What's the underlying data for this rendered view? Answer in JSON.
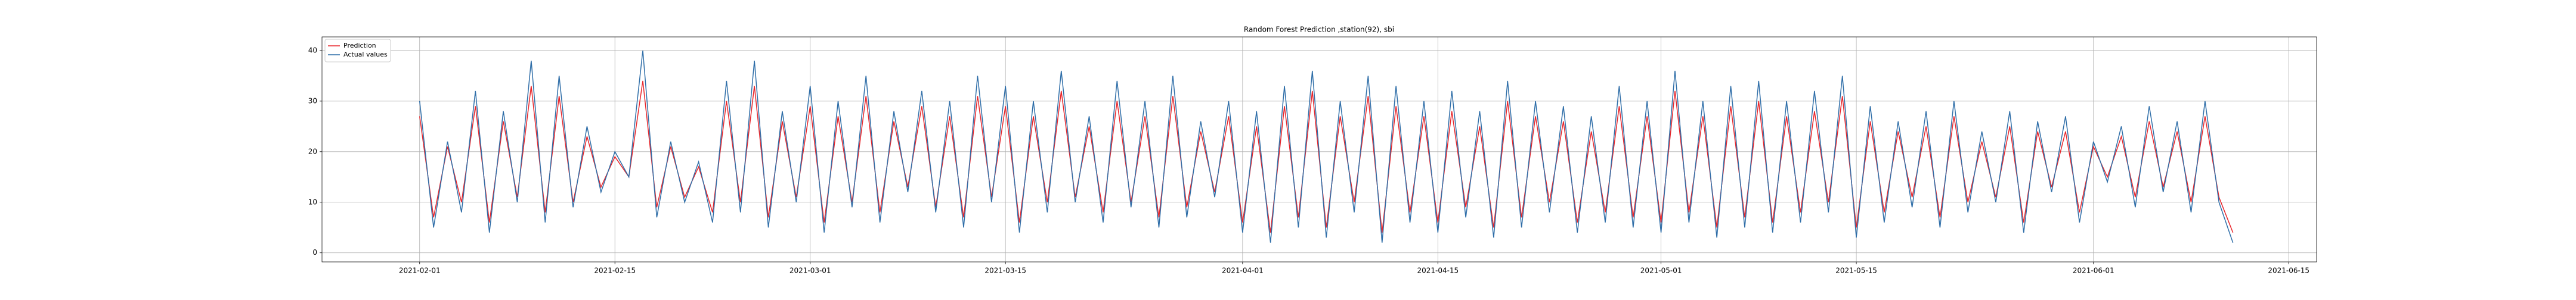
{
  "chart_data": {
    "type": "line",
    "title": "Random Forest Prediction ,station(92), sbi",
    "x": [
      "2021-02-01",
      "2021-02-02",
      "2021-02-03",
      "2021-02-04",
      "2021-02-05",
      "2021-02-06",
      "2021-02-07",
      "2021-02-08",
      "2021-02-09",
      "2021-02-10",
      "2021-02-11",
      "2021-02-12",
      "2021-02-13",
      "2021-02-14",
      "2021-02-15",
      "2021-02-16",
      "2021-02-17",
      "2021-02-18",
      "2021-02-19",
      "2021-02-20",
      "2021-02-21",
      "2021-02-22",
      "2021-02-23",
      "2021-02-24",
      "2021-02-25",
      "2021-02-26",
      "2021-02-27",
      "2021-02-28",
      "2021-03-01",
      "2021-03-02",
      "2021-03-03",
      "2021-03-04",
      "2021-03-05",
      "2021-03-06",
      "2021-03-07",
      "2021-03-08",
      "2021-03-09",
      "2021-03-10",
      "2021-03-11",
      "2021-03-12",
      "2021-03-13",
      "2021-03-14",
      "2021-03-15",
      "2021-03-16",
      "2021-03-17",
      "2021-03-18",
      "2021-03-19",
      "2021-03-20",
      "2021-03-21",
      "2021-03-22",
      "2021-03-23",
      "2021-03-24",
      "2021-03-25",
      "2021-03-26",
      "2021-03-27",
      "2021-03-28",
      "2021-03-29",
      "2021-03-30",
      "2021-03-31",
      "2021-04-01",
      "2021-04-02",
      "2021-04-03",
      "2021-04-04",
      "2021-04-05",
      "2021-04-06",
      "2021-04-07",
      "2021-04-08",
      "2021-04-09",
      "2021-04-10",
      "2021-04-11",
      "2021-04-12",
      "2021-04-13",
      "2021-04-14",
      "2021-04-15",
      "2021-04-16",
      "2021-04-17",
      "2021-04-18",
      "2021-04-19",
      "2021-04-20",
      "2021-04-21",
      "2021-04-22",
      "2021-04-23",
      "2021-04-24",
      "2021-04-25",
      "2021-04-26",
      "2021-04-27",
      "2021-04-28",
      "2021-04-29",
      "2021-04-30",
      "2021-05-01",
      "2021-05-02",
      "2021-05-03",
      "2021-05-04",
      "2021-05-05",
      "2021-05-06",
      "2021-05-07",
      "2021-05-08",
      "2021-05-09",
      "2021-05-10",
      "2021-05-11",
      "2021-05-12",
      "2021-05-13",
      "2021-05-14",
      "2021-05-15",
      "2021-05-16",
      "2021-05-17",
      "2021-05-18",
      "2021-05-19",
      "2021-05-20",
      "2021-05-21",
      "2021-05-22",
      "2021-05-23",
      "2021-05-24",
      "2021-05-25",
      "2021-05-26",
      "2021-05-27",
      "2021-05-28",
      "2021-05-29",
      "2021-05-30",
      "2021-05-31",
      "2021-06-01",
      "2021-06-02",
      "2021-06-03",
      "2021-06-04",
      "2021-06-05",
      "2021-06-06",
      "2021-06-07",
      "2021-06-08",
      "2021-06-09",
      "2021-06-10",
      "2021-06-11"
    ],
    "series": [
      {
        "name": "Prediction",
        "color": "#e8262b",
        "values": [
          27,
          7,
          21,
          10,
          29,
          6,
          26,
          11,
          33,
          8,
          31,
          10,
          23,
          13,
          19,
          15,
          34,
          9,
          21,
          11,
          17,
          8,
          30,
          10,
          33,
          7,
          26,
          11,
          29,
          6,
          27,
          10,
          31,
          8,
          26,
          13,
          29,
          9,
          27,
          7,
          31,
          11,
          29,
          6,
          27,
          10,
          32,
          11,
          25,
          8,
          30,
          10,
          27,
          7,
          31,
          9,
          24,
          12,
          27,
          6,
          25,
          4,
          29,
          7,
          32,
          5,
          27,
          10,
          31,
          4,
          29,
          8,
          27,
          6,
          28,
          9,
          25,
          5,
          30,
          7,
          27,
          10,
          26,
          6,
          24,
          8,
          29,
          7,
          27,
          6,
          32,
          8,
          27,
          5,
          29,
          7,
          30,
          6,
          27,
          8,
          28,
          10,
          31,
          5,
          26,
          8,
          24,
          11,
          25,
          7,
          27,
          10,
          22,
          11,
          25,
          6,
          24,
          13,
          24,
          8,
          21,
          15,
          23,
          11,
          26,
          13,
          24,
          10,
          27,
          11,
          4
        ]
      },
      {
        "name": "Actual values",
        "color": "#2f6ea8",
        "values": [
          30,
          5,
          22,
          8,
          32,
          4,
          28,
          10,
          38,
          6,
          35,
          9,
          25,
          12,
          20,
          15,
          40,
          7,
          22,
          10,
          18,
          6,
          34,
          8,
          38,
          5,
          28,
          10,
          33,
          4,
          30,
          9,
          35,
          6,
          28,
          12,
          32,
          8,
          30,
          5,
          35,
          10,
          33,
          4,
          30,
          8,
          36,
          10,
          27,
          6,
          34,
          9,
          30,
          5,
          35,
          7,
          26,
          11,
          30,
          4,
          28,
          2,
          33,
          5,
          36,
          3,
          30,
          8,
          35,
          2,
          33,
          6,
          30,
          4,
          32,
          7,
          28,
          3,
          34,
          5,
          30,
          8,
          29,
          4,
          27,
          6,
          33,
          5,
          30,
          4,
          36,
          6,
          30,
          3,
          33,
          5,
          34,
          4,
          30,
          6,
          32,
          8,
          35,
          3,
          29,
          6,
          26,
          9,
          28,
          5,
          30,
          8,
          24,
          10,
          28,
          4,
          26,
          12,
          27,
          6,
          22,
          14,
          25,
          9,
          29,
          12,
          26,
          8,
          30,
          10,
          2
        ]
      }
    ],
    "xlim": [
      "2021-01-25",
      "2021-06-17"
    ],
    "xticks": [
      "2021-02-01",
      "2021-02-15",
      "2021-03-01",
      "2021-03-15",
      "2021-04-01",
      "2021-04-15",
      "2021-05-01",
      "2021-05-15",
      "2021-06-01",
      "2021-06-15"
    ],
    "ylim": [
      -1.8,
      42.7
    ],
    "yticks": [
      0,
      10,
      20,
      30,
      40
    ],
    "grid": true,
    "legend": "upper-left"
  }
}
